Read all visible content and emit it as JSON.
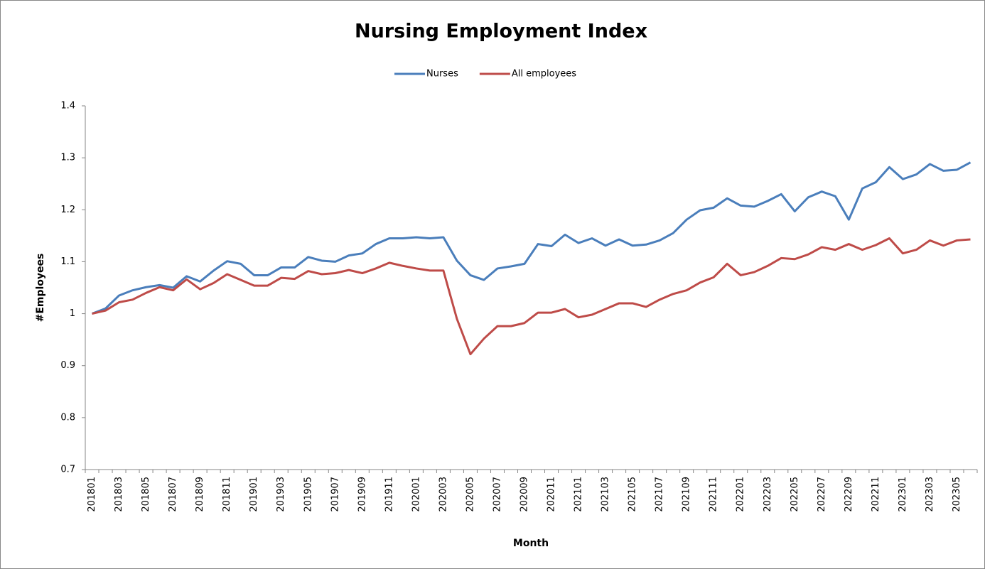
{
  "chart_data": {
    "type": "line",
    "title": "Nursing Employment Index",
    "x_label": "Month",
    "y_label": "#Employees",
    "categories": [
      "201801",
      null,
      "201803",
      null,
      "201805",
      null,
      "201807",
      null,
      "201809",
      null,
      "201811",
      null,
      "201901",
      null,
      "201903",
      null,
      "201905",
      null,
      "201907",
      null,
      "201909",
      null,
      "201911",
      null,
      "202001",
      null,
      "202003",
      null,
      "202005",
      null,
      "202007",
      null,
      "202009",
      null,
      "202011",
      null,
      "202101",
      null,
      "202103",
      null,
      "202105",
      null,
      "202107",
      null,
      "202109",
      null,
      "202111",
      null,
      "202201",
      null,
      "202203",
      null,
      "202205",
      null,
      "202207",
      null,
      "202209",
      null,
      "202211",
      null,
      "202301",
      null,
      "202303",
      null,
      "202305",
      null
    ],
    "series": [
      {
        "name": "Nurses",
        "color": "#4a7ebb",
        "values": [
          1.0,
          1.01,
          1.035,
          1.045,
          1.051,
          1.055,
          1.05,
          1.072,
          1.062,
          1.083,
          1.101,
          1.096,
          1.074,
          1.074,
          1.089,
          1.089,
          1.109,
          1.102,
          1.1,
          1.112,
          1.116,
          1.134,
          1.145,
          1.145,
          1.147,
          1.145,
          1.147,
          1.102,
          1.074,
          1.065,
          1.087,
          1.091,
          1.096,
          1.134,
          1.13,
          1.152,
          1.136,
          1.145,
          1.131,
          1.143,
          1.131,
          1.133,
          1.141,
          1.155,
          1.181,
          1.199,
          1.204,
          1.222,
          1.208,
          1.206,
          1.217,
          1.23,
          1.197,
          1.224,
          1.235,
          1.226,
          1.181,
          1.241,
          1.253,
          1.282,
          1.259,
          1.268,
          1.288,
          1.275,
          1.277,
          1.291
        ]
      },
      {
        "name": "All employees",
        "color": "#be4b48",
        "values": [
          1.0,
          1.006,
          1.022,
          1.027,
          1.04,
          1.051,
          1.045,
          1.066,
          1.047,
          1.059,
          1.076,
          1.065,
          1.054,
          1.054,
          1.069,
          1.067,
          1.082,
          1.076,
          1.078,
          1.084,
          1.078,
          1.087,
          1.098,
          1.092,
          1.087,
          1.083,
          1.083,
          0.99,
          0.922,
          0.952,
          0.976,
          0.976,
          0.982,
          1.002,
          1.002,
          1.009,
          0.993,
          0.998,
          1.009,
          1.02,
          1.02,
          1.013,
          1.027,
          1.038,
          1.045,
          1.06,
          1.07,
          1.096,
          1.074,
          1.08,
          1.092,
          1.107,
          1.105,
          1.114,
          1.128,
          1.123,
          1.134,
          1.123,
          1.132,
          1.145,
          1.116,
          1.123,
          1.141,
          1.131,
          1.141,
          1.143
        ]
      }
    ],
    "ylim": [
      0.7,
      1.4
    ],
    "yticks": [
      0.7,
      0.8,
      0.9,
      1,
      1.1,
      1.2,
      1.3,
      1.4
    ],
    "grid": false,
    "legend": "top"
  }
}
